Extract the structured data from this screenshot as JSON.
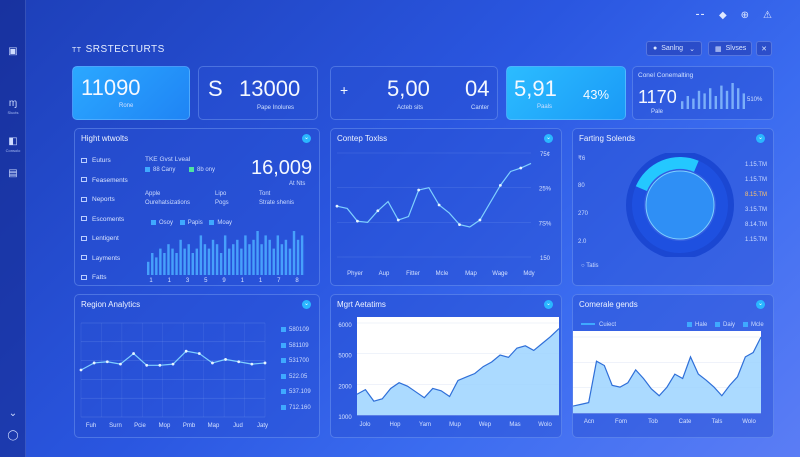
{
  "header": {
    "brand": "SRSTECTURTS",
    "filter1": "Sanlng",
    "filter2": "Slvses"
  },
  "sidebar": {
    "items": [
      {
        "label": ""
      },
      {
        "label": "Slucts"
      },
      {
        "label": "Consolo"
      },
      {
        "label": ""
      }
    ]
  },
  "kpis": [
    {
      "value": "11090",
      "label": "Rone"
    },
    {
      "value": "13000",
      "prefix": "S",
      "label": "Pape Inolures"
    },
    {
      "value": "5,00",
      "prefix": "+",
      "label": "Acteb sits"
    },
    {
      "value": "04",
      "label": "Canter"
    },
    {
      "value": "5,91",
      "label": "Paals",
      "extra": "43%"
    },
    {
      "title": "Conel Conemalting",
      "value": "1170",
      "label": "Pale",
      "extra": "510%"
    }
  ],
  "panel_high": {
    "title": "Hight wtwolts",
    "menu": [
      "Euturs",
      "Feasements",
      "Neports",
      "Escoments",
      "Lentigent",
      "Layments",
      "Fatts"
    ],
    "header_line": "TKE Gvst Lveal",
    "legend1": "88 Cany",
    "legend2": "8b ony",
    "row1a": "Apple",
    "row1b": "Lipo",
    "row1c": "Tont",
    "row2a": "Ourehatsizations",
    "row2b": "Pogs",
    "row2c": "Strate shenis",
    "big_value": "16,009",
    "big_label": "At Nts",
    "bar_legend": [
      "Osoy",
      "Papis",
      "Moay"
    ],
    "bar_ticks": [
      "1",
      "1",
      "3",
      "5",
      "9",
      "1",
      "1",
      "7",
      "8"
    ],
    "chart_data": {
      "type": "bar",
      "values": [
        0.3,
        0.5,
        0.4,
        0.6,
        0.5,
        0.7,
        0.6,
        0.5,
        0.8,
        0.6,
        0.7,
        0.5,
        0.6,
        0.9,
        0.7,
        0.6,
        0.8,
        0.7,
        0.5,
        0.9,
        0.6,
        0.7,
        0.8,
        0.6,
        0.9,
        0.7,
        0.8,
        1.0,
        0.7,
        0.9,
        0.8,
        0.6,
        0.9,
        0.7,
        0.8,
        0.6,
        1.0,
        0.8,
        0.9,
        0.7
      ]
    }
  },
  "panel_contep": {
    "title": "Contep Toxlss",
    "y_ticks": [
      "75¢",
      "25%",
      "7S%",
      "150"
    ],
    "x_ticks": [
      "Phyer",
      "Aup",
      "Fitter",
      "Mcle",
      "Map",
      "Wage",
      "Mdy"
    ],
    "chart_data": {
      "type": "line",
      "values": [
        44,
        42,
        31,
        30,
        40,
        48,
        32,
        35,
        58,
        60,
        45,
        38,
        28,
        26,
        32,
        47,
        62,
        74,
        77,
        81
      ]
    }
  },
  "panel_farting": {
    "title": "Farting Solends",
    "y_ticks": [
      "₹6",
      "80",
      "270",
      "2.0"
    ],
    "legend": "Tatis",
    "values": [
      "1.15.TM",
      "1.15.TM",
      "8.15.TM",
      "3.15.TM",
      "8.14.TM",
      "1.15.TM"
    ],
    "chart_data": {
      "type": "pie",
      "segments": [
        {
          "value": 75,
          "color": "#1e50e0"
        },
        {
          "value": 25,
          "color": "#24c8ff"
        }
      ]
    }
  },
  "panel_region": {
    "title": "Region Analytics",
    "values": [
      "580109",
      "581109",
      "531700",
      "522.05",
      "537.109",
      "712.160"
    ],
    "x_ticks": [
      "Fuh",
      "Surn",
      "Pcie",
      "Mop",
      "Pmb",
      "Map",
      "Jud",
      "Jaty"
    ],
    "chart_data": {
      "type": "line",
      "values": [
        40,
        46,
        47,
        45,
        54,
        44,
        44,
        45,
        56,
        54,
        46,
        49,
        47,
        45,
        46
      ]
    }
  },
  "panel_mgrt": {
    "title": "Mgrt Aetatims",
    "y_ticks": [
      "6000",
      "5000",
      "2000",
      "1000"
    ],
    "x_ticks": [
      "Jolo",
      "Hop",
      "Yam",
      "Mup",
      "Wep",
      "Mas",
      "Wolo"
    ],
    "chart_data": {
      "type": "area",
      "values": [
        18,
        22,
        12,
        14,
        23,
        28,
        25,
        20,
        15,
        23,
        21,
        16,
        30,
        33,
        36,
        42,
        46,
        52,
        50,
        58,
        60,
        56,
        62,
        68,
        75
      ]
    }
  },
  "panel_comerale": {
    "title": "Comerale gends",
    "legend": [
      "Cuiect",
      "Hale",
      "Daiy",
      "Mcle"
    ],
    "x_ticks": [
      "Acn",
      "Fom",
      "Tob",
      "Cate",
      "Tals",
      "Wolo"
    ],
    "chart_data": {
      "type": "area",
      "values": [
        8,
        10,
        12,
        60,
        55,
        32,
        30,
        35,
        50,
        40,
        28,
        20,
        30,
        45,
        40,
        65,
        45,
        38,
        30,
        20,
        32,
        42,
        65,
        70,
        88
      ]
    }
  },
  "colors": {
    "accent": "#2ab7ff",
    "line": "#7fd0ff",
    "area": "#9cd3ff"
  }
}
